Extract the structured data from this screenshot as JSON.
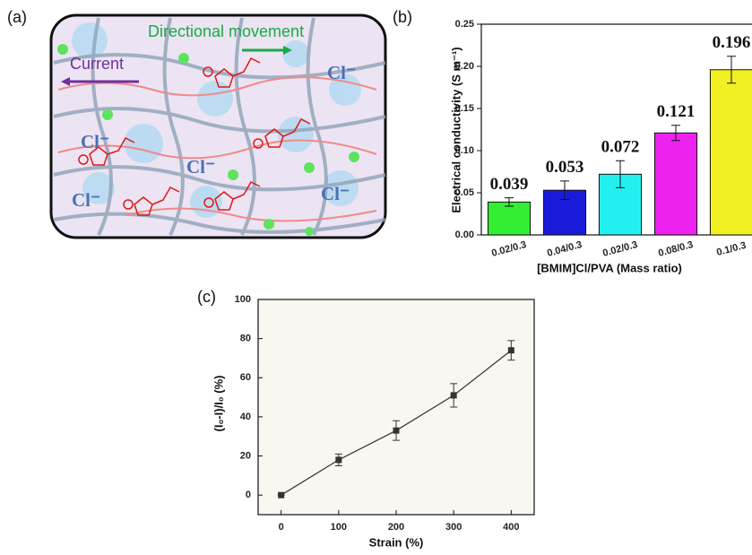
{
  "panels": [
    "(a)",
    "(b)",
    "(c)"
  ],
  "diagram": {
    "movement": "Directional movement",
    "current": "Current",
    "ions": [
      "Cl⁻",
      "Cl⁻",
      "Cl⁻",
      "Cl⁻",
      "Cl⁻"
    ]
  },
  "chart_data": [
    {
      "type": "bar",
      "xlabel": "[BMIM]Cl/PVA (Mass ratio)",
      "ylabel": "Electrical conductivity (S m⁻¹)",
      "categories": [
        "0.02/0.3",
        "0.04/0.3",
        "0.02/0.3",
        "0.08/0.3",
        "0.1/0.3"
      ],
      "values": [
        0.039,
        0.053,
        0.072,
        0.121,
        0.196
      ],
      "errors": [
        0.005,
        0.011,
        0.016,
        0.009,
        0.016
      ],
      "colors": [
        "#33ee33",
        "#1a1adb",
        "#22f0f0",
        "#ee22ee",
        "#f0f022"
      ],
      "ylim": [
        0,
        0.25
      ],
      "yticks": [
        {
          "value": 0,
          "label": "0.00"
        },
        0.05,
        {
          "value": 0.1,
          "label": "0.10"
        },
        0.15,
        {
          "value": 0.2,
          "label": "0.20"
        },
        0.25
      ]
    },
    {
      "type": "line",
      "xlabel": "Strain (%)",
      "ylabel": "(I₀-I)/I₀ (%)",
      "x": [
        0,
        100,
        200,
        300,
        400
      ],
      "values": [
        0,
        18,
        33,
        51,
        74
      ],
      "errors": [
        0,
        3,
        5,
        6,
        5
      ],
      "color": "#333333",
      "xlim": [
        -40,
        440
      ],
      "xticks": [
        0,
        100,
        200,
        300,
        400
      ],
      "ylim": [
        -10,
        100
      ],
      "yticks": [
        0,
        20,
        40,
        60,
        80,
        100
      ]
    }
  ]
}
